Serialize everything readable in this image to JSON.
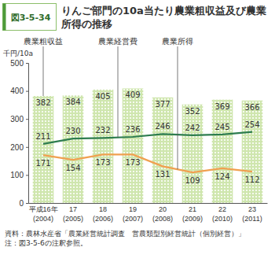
{
  "chart_data": {
    "type": "bar",
    "figure_label": "図3-5-34",
    "title": "りんご部門の10a当たり農業粗収益及び農業所得の推移",
    "y_label": "千円/10a",
    "categories": [
      "平成16年\n(2004)",
      "17\n(2005)",
      "18\n(2006)",
      "19\n(2007)",
      "20\n(2008)",
      "21\n(2009)",
      "22\n(2010)",
      "23\n(2011)"
    ],
    "series": [
      {
        "name": "農業粗収益",
        "type": "bar",
        "color": "#cfe6ae",
        "values": [
          382,
          384,
          405,
          409,
          377,
          352,
          369,
          366
        ]
      },
      {
        "name": "農業経営費",
        "type": "line",
        "color": "#2e7d4f",
        "values": [
          211,
          230,
          232,
          236,
          246,
          242,
          245,
          254
        ]
      },
      {
        "name": "農業所得",
        "type": "line",
        "color": "#f0a050",
        "values": [
          171,
          154,
          173,
          173,
          131,
          109,
          124,
          112
        ]
      }
    ],
    "ylim": [
      0,
      500
    ],
    "yticks": [
      0,
      100,
      200,
      300,
      400,
      500
    ],
    "grid": false,
    "data_labels": true,
    "source": "資料：農林水産省「農業経営統計調査　営農類型別経営統計（個別経営）」",
    "note": "注：図3-5-6の注釈参照。"
  }
}
